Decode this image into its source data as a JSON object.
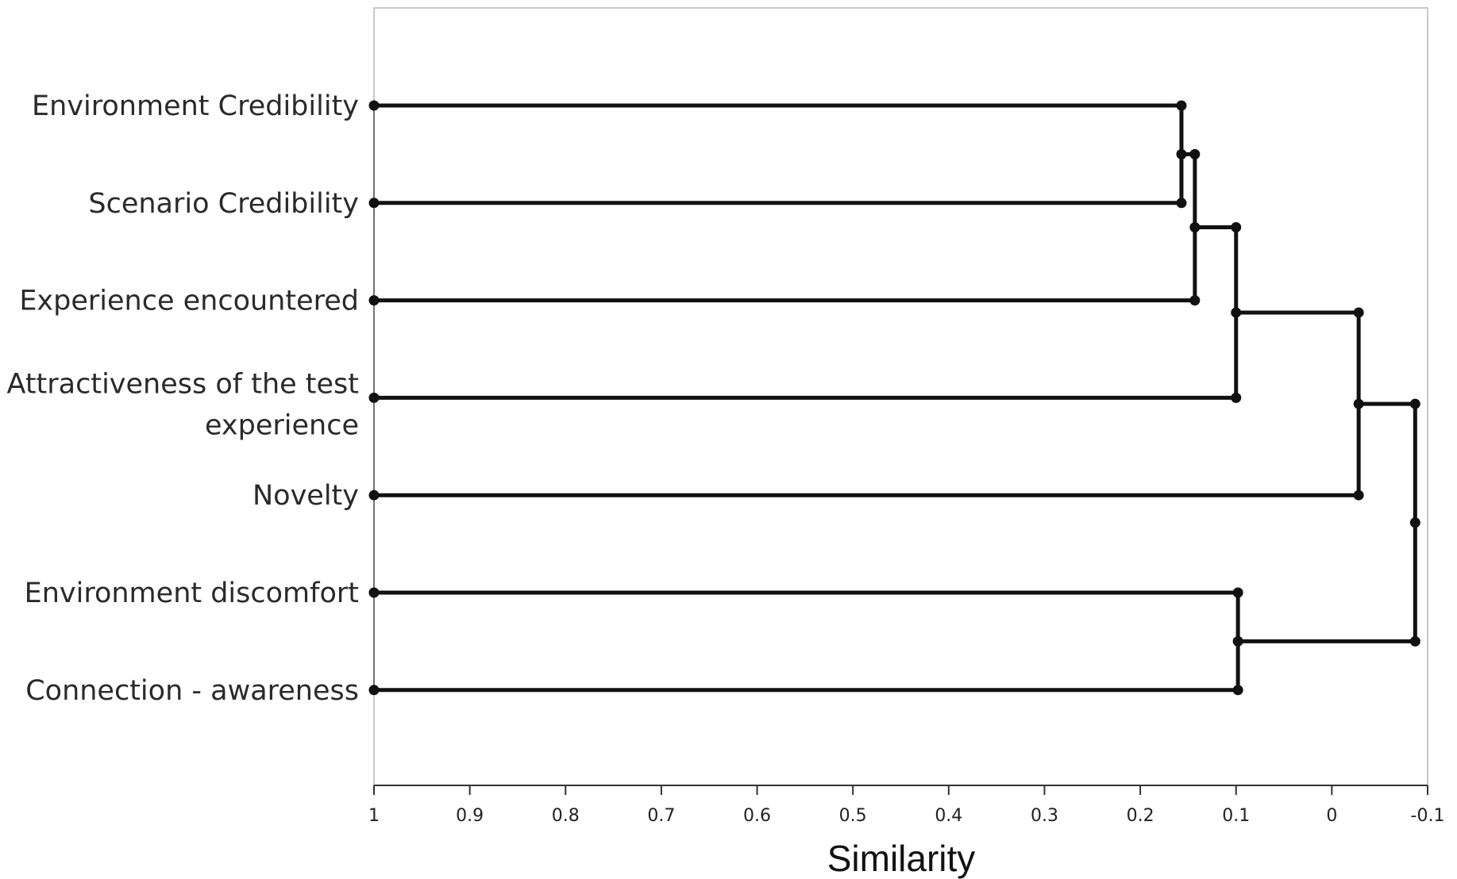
{
  "chart_data": {
    "type": "dendrogram",
    "orientation": "horizontal",
    "xlabel": "Similarity",
    "xlim": [
      1,
      -0.1
    ],
    "xticks": [
      "1",
      "0.9",
      "0.8",
      "0.7",
      "0.6",
      "0.5",
      "0.4",
      "0.3",
      "0.2",
      "0.1",
      "0",
      "-0.1"
    ],
    "leaves": [
      {
        "id": "L1",
        "lines": [
          "Environment Credibility"
        ]
      },
      {
        "id": "L2",
        "lines": [
          "Scenario Credibility"
        ]
      },
      {
        "id": "L3",
        "lines": [
          "Experience encountered"
        ]
      },
      {
        "id": "L4",
        "lines": [
          "Attractiveness of the test",
          "experience"
        ]
      },
      {
        "id": "L5",
        "lines": [
          "Novelty"
        ]
      },
      {
        "id": "L6",
        "lines": [
          "Environment discomfort"
        ]
      },
      {
        "id": "L7",
        "lines": [
          "Connection - awareness"
        ]
      }
    ],
    "merges": [
      {
        "id": "N1",
        "children": [
          "L1",
          "L2"
        ],
        "similarity": 0.157
      },
      {
        "id": "N2",
        "children": [
          "N1",
          "L3"
        ],
        "similarity": 0.143
      },
      {
        "id": "N3",
        "children": [
          "N2",
          "L4"
        ],
        "similarity": 0.1
      },
      {
        "id": "N4",
        "children": [
          "L6",
          "L7"
        ],
        "similarity": 0.098
      },
      {
        "id": "N5",
        "children": [
          "N3",
          "L5"
        ],
        "similarity": -0.028
      },
      {
        "id": "N6",
        "children": [
          "N5",
          "N4"
        ],
        "similarity": -0.087
      }
    ],
    "colors": {
      "lines": "#111111",
      "frame": "#c8c8c8"
    }
  }
}
